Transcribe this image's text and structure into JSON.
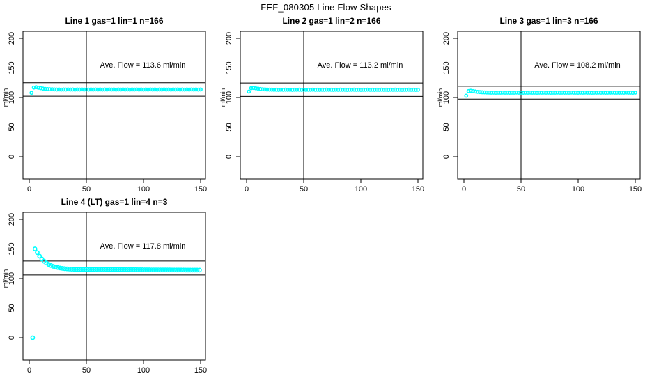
{
  "title": "FEF_080305  Line Flow Shapes",
  "colors": {
    "points": "#00ffff",
    "axis": "#000000",
    "text": "#000000",
    "background": "#ffffff"
  },
  "chart_data": [
    {
      "type": "scatter",
      "title": "Line 1 gas=1 lin=1 n=166",
      "ave_label": "Ave. Flow =  113.6  ml/min",
      "ave_flow": 113.6,
      "n": 166,
      "xlabel": "",
      "ylabel": "ml/min",
      "x_ticks": [
        0,
        50,
        100,
        150
      ],
      "y_ticks": [
        0,
        50,
        100,
        150,
        200
      ],
      "xlim": [
        0,
        155
      ],
      "ylim": [
        0,
        210
      ],
      "vline_x": 50,
      "ref_upper": 125.0,
      "ref_lower": 102.2,
      "point_radius": 2.1,
      "x": [
        2,
        4,
        6,
        8,
        10,
        12,
        14,
        16,
        18,
        20,
        22,
        24,
        26,
        28,
        30,
        32,
        34,
        36,
        38,
        40,
        42,
        44,
        46,
        48,
        50,
        52,
        54,
        56,
        58,
        60,
        62,
        64,
        66,
        68,
        70,
        72,
        74,
        76,
        78,
        80,
        82,
        84,
        86,
        88,
        90,
        92,
        94,
        96,
        98,
        100,
        102,
        104,
        106,
        108,
        110,
        112,
        114,
        116,
        118,
        120,
        122,
        124,
        126,
        128,
        130,
        132,
        134,
        136,
        138,
        140,
        142,
        144,
        146,
        148,
        150
      ],
      "y": [
        108,
        116.8,
        117.4,
        116.6,
        115.8,
        115.1,
        114.6,
        114.3,
        114,
        113.9,
        113.7,
        113.5,
        113.6,
        113.4,
        113.6,
        113.5,
        113.7,
        113.5,
        113.6,
        113.4,
        113.6,
        113.5,
        113.7,
        113.5,
        113.6,
        113.4,
        113.6,
        113.5,
        113.7,
        113.5,
        113.6,
        113.4,
        113.6,
        113.5,
        113.7,
        113.5,
        113.6,
        113.4,
        113.6,
        113.5,
        113.7,
        113.5,
        113.6,
        113.4,
        113.6,
        113.5,
        113.7,
        113.5,
        113.6,
        113.4,
        113.6,
        113.5,
        113.7,
        113.5,
        113.6,
        113.4,
        113.6,
        113.5,
        113.7,
        113.5,
        113.6,
        113.4,
        113.6,
        113.5,
        113.7,
        113.5,
        113.6,
        113.4,
        113.6,
        113.5,
        113.7,
        113.5,
        113.6,
        113.4,
        113.6
      ]
    },
    {
      "type": "scatter",
      "title": "Line 2 gas=1 lin=2 n=166",
      "ave_label": "Ave. Flow =  113.2  ml/min",
      "ave_flow": 113.2,
      "n": 166,
      "xlabel": "",
      "ylabel": "ml/min",
      "x_ticks": [
        0,
        50,
        100,
        150
      ],
      "y_ticks": [
        0,
        50,
        100,
        150,
        200
      ],
      "xlim": [
        0,
        155
      ],
      "ylim": [
        0,
        210
      ],
      "vline_x": 50,
      "ref_upper": 124.5,
      "ref_lower": 101.9,
      "point_radius": 2.1,
      "x": [
        2,
        4,
        6,
        8,
        10,
        12,
        14,
        16,
        18,
        20,
        22,
        24,
        26,
        28,
        30,
        32,
        34,
        36,
        38,
        40,
        42,
        44,
        46,
        48,
        50,
        52,
        54,
        56,
        58,
        60,
        62,
        64,
        66,
        68,
        70,
        72,
        74,
        76,
        78,
        80,
        82,
        84,
        86,
        88,
        90,
        92,
        94,
        96,
        98,
        100,
        102,
        104,
        106,
        108,
        110,
        112,
        114,
        116,
        118,
        120,
        122,
        124,
        126,
        128,
        130,
        132,
        134,
        136,
        138,
        140,
        142,
        144,
        146,
        148,
        150
      ],
      "y": [
        110,
        115.8,
        116.2,
        115.6,
        115,
        114.4,
        114,
        113.7,
        113.5,
        113.4,
        113.3,
        113.1,
        113.2,
        113,
        113.2,
        113.1,
        113.3,
        113.1,
        113.2,
        113,
        113.2,
        113.1,
        113.3,
        113.1,
        113.2,
        113,
        113.2,
        113.1,
        113.3,
        113.1,
        113.2,
        113,
        113.2,
        113.1,
        113.3,
        113.1,
        113.2,
        113,
        113.2,
        113.1,
        113.3,
        113.1,
        113.2,
        113,
        113.2,
        113.1,
        113.3,
        113.1,
        113.2,
        113,
        113.2,
        113.1,
        113.3,
        113.1,
        113.2,
        113,
        113.2,
        113.1,
        113.3,
        113.1,
        113.2,
        113,
        113.2,
        113.1,
        113.3,
        113.1,
        113.2,
        113,
        113.2,
        113.1,
        113.3,
        113.1,
        113.2,
        113,
        113.2
      ]
    },
    {
      "type": "scatter",
      "title": "Line 3 gas=1 lin=3 n=166",
      "ave_label": "Ave. Flow =  108.2  ml/min",
      "ave_flow": 108.2,
      "n": 166,
      "xlabel": "",
      "ylabel": "ml/min",
      "x_ticks": [
        0,
        50,
        100,
        150
      ],
      "y_ticks": [
        0,
        50,
        100,
        150,
        200
      ],
      "xlim": [
        0,
        155
      ],
      "ylim": [
        0,
        210
      ],
      "vline_x": 50,
      "ref_upper": 119.0,
      "ref_lower": 97.4,
      "point_radius": 2.1,
      "x": [
        2,
        4,
        6,
        8,
        10,
        12,
        14,
        16,
        18,
        20,
        22,
        24,
        26,
        28,
        30,
        32,
        34,
        36,
        38,
        40,
        42,
        44,
        46,
        48,
        50,
        52,
        54,
        56,
        58,
        60,
        62,
        64,
        66,
        68,
        70,
        72,
        74,
        76,
        78,
        80,
        82,
        84,
        86,
        88,
        90,
        92,
        94,
        96,
        98,
        100,
        102,
        104,
        106,
        108,
        110,
        112,
        114,
        116,
        118,
        120,
        122,
        124,
        126,
        128,
        130,
        132,
        134,
        136,
        138,
        140,
        142,
        144,
        146,
        148,
        150
      ],
      "y": [
        103,
        110.8,
        111.4,
        110.8,
        110.2,
        109.6,
        109.2,
        108.9,
        108.7,
        108.5,
        108.4,
        108.2,
        108.3,
        108.1,
        108.3,
        108.2,
        108.4,
        108.2,
        108.3,
        108.1,
        108.3,
        108.2,
        108.4,
        108.2,
        108.3,
        108.1,
        108.3,
        108.2,
        108.4,
        108.2,
        108.3,
        108.1,
        108.3,
        108.2,
        108.4,
        108.2,
        108.3,
        108.1,
        108.3,
        108.2,
        108.4,
        108.2,
        108.3,
        108.1,
        108.3,
        108.2,
        108.4,
        108.2,
        108.3,
        108.1,
        108.3,
        108.2,
        108.4,
        108.2,
        108.3,
        108.1,
        108.3,
        108.2,
        108.4,
        108.2,
        108.3,
        108.1,
        108.3,
        108.2,
        108.4,
        108.2,
        108.3,
        108.1,
        108.3,
        108.2,
        108.4,
        108.2,
        108.3,
        108.1,
        108.3
      ]
    },
    {
      "type": "scatter",
      "title": "Line 4 (LT) gas=1 lin=4 n=3",
      "ave_label": "Ave. Flow =  117.8  ml/min",
      "ave_flow": 117.8,
      "n": 3,
      "xlabel": "",
      "ylabel": "ml/min",
      "x_ticks": [
        0,
        50,
        100,
        150
      ],
      "y_ticks": [
        0,
        50,
        100,
        150,
        200
      ],
      "xlim": [
        0,
        155
      ],
      "ylim": [
        0,
        210
      ],
      "vline_x": 50,
      "ref_upper": 129.6,
      "ref_lower": 106.0,
      "point_radius": 2.6,
      "x": [
        5,
        7,
        9,
        11,
        13,
        15,
        17,
        19,
        21,
        23,
        25,
        27,
        29,
        31,
        33,
        35,
        37,
        39,
        41,
        43,
        45,
        47,
        49,
        51,
        53,
        55,
        57,
        59,
        61,
        63,
        65,
        67,
        69,
        71,
        73,
        75,
        77,
        79,
        81,
        83,
        85,
        87,
        89,
        91,
        93,
        95,
        97,
        99,
        101,
        103,
        105,
        107,
        109,
        111,
        113,
        115,
        117,
        119,
        121,
        123,
        125,
        127,
        129,
        131,
        133,
        135,
        137,
        139,
        141,
        143,
        145,
        147,
        149
      ],
      "y": [
        150,
        143.8,
        137.8,
        133,
        129.2,
        126.2,
        123.9,
        122,
        120.6,
        119.4,
        118.5,
        117.8,
        117.2,
        116.7,
        116.3,
        116,
        115.8,
        115.6,
        115.5,
        115.4,
        115.3,
        115.3,
        115.2,
        115.2,
        115.3,
        115.4,
        115.5,
        115.6,
        115.7,
        115.6,
        115.6,
        115.5,
        115.4,
        115.3,
        115.3,
        115.2,
        115.2,
        115.1,
        115.1,
        115,
        115,
        115,
        114.9,
        114.9,
        114.9,
        114.8,
        114.8,
        114.8,
        114.7,
        114.7,
        114.7,
        114.6,
        114.6,
        114.6,
        114.6,
        114.5,
        114.5,
        114.5,
        114.5,
        114.5,
        114.4,
        114.4,
        114.4,
        114.4,
        114.4,
        114.4,
        114.3,
        114.3,
        114.3,
        114.3,
        114.3,
        114.3,
        114.3
      ],
      "extra_points": [
        [
          3,
          0
        ]
      ]
    }
  ]
}
